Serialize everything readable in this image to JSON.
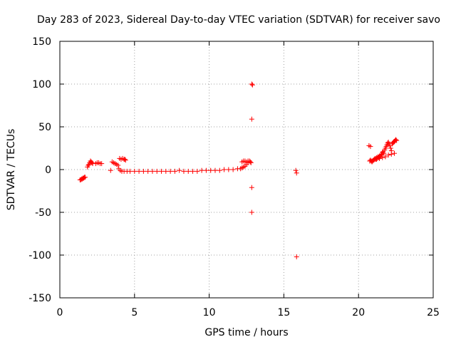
{
  "chart_data": {
    "type": "scatter",
    "title": "Day 283 of 2023, Sidereal Day-to-day VTEC variation (SDTVAR) for receiver savo",
    "xlabel": "GPS time / hours",
    "ylabel": "SDTVAR / TECUs",
    "xlim": [
      0,
      25
    ],
    "ylim": [
      -150,
      150
    ],
    "xticks": [
      0,
      5,
      10,
      15,
      20,
      25
    ],
    "yticks": [
      -150,
      -100,
      -50,
      0,
      50,
      100,
      150
    ],
    "grid": true,
    "marker": "+",
    "color": "#ff0000",
    "points": [
      [
        1.35,
        -12
      ],
      [
        1.4,
        -12
      ],
      [
        1.45,
        -11
      ],
      [
        1.5,
        -11
      ],
      [
        1.55,
        -10
      ],
      [
        1.6,
        -10
      ],
      [
        1.65,
        -9
      ],
      [
        1.7,
        -9
      ],
      [
        1.85,
        3
      ],
      [
        1.9,
        5
      ],
      [
        1.95,
        6
      ],
      [
        2.0,
        8
      ],
      [
        2.05,
        10
      ],
      [
        2.1,
        9
      ],
      [
        2.15,
        8
      ],
      [
        2.2,
        7
      ],
      [
        2.4,
        7
      ],
      [
        2.5,
        8
      ],
      [
        2.6,
        8
      ],
      [
        2.7,
        7
      ],
      [
        2.8,
        7
      ],
      [
        3.4,
        -1
      ],
      [
        3.5,
        9
      ],
      [
        3.6,
        8
      ],
      [
        3.7,
        7
      ],
      [
        3.8,
        6
      ],
      [
        3.9,
        5
      ],
      [
        4.0,
        13
      ],
      [
        4.1,
        12
      ],
      [
        4.2,
        13
      ],
      [
        4.3,
        12
      ],
      [
        4.35,
        12
      ],
      [
        4.4,
        11
      ],
      [
        3.95,
        1
      ],
      [
        4.05,
        -1
      ],
      [
        4.15,
        -2
      ],
      [
        4.3,
        -2
      ],
      [
        4.5,
        -2
      ],
      [
        4.7,
        -2
      ],
      [
        5.0,
        -2
      ],
      [
        5.3,
        -2
      ],
      [
        5.6,
        -2
      ],
      [
        5.9,
        -2
      ],
      [
        6.2,
        -2
      ],
      [
        6.5,
        -2
      ],
      [
        6.8,
        -2
      ],
      [
        7.1,
        -2
      ],
      [
        7.4,
        -2
      ],
      [
        7.7,
        -2
      ],
      [
        8.0,
        -1
      ],
      [
        8.3,
        -2
      ],
      [
        8.6,
        -2
      ],
      [
        8.9,
        -2
      ],
      [
        9.2,
        -2
      ],
      [
        9.5,
        -1
      ],
      [
        9.8,
        -1
      ],
      [
        10.1,
        -1
      ],
      [
        10.4,
        -1
      ],
      [
        10.7,
        -1
      ],
      [
        11.0,
        0
      ],
      [
        11.3,
        0
      ],
      [
        11.6,
        0
      ],
      [
        11.9,
        1
      ],
      [
        12.1,
        1
      ],
      [
        12.2,
        2
      ],
      [
        12.3,
        3
      ],
      [
        12.4,
        4
      ],
      [
        12.5,
        6
      ],
      [
        12.6,
        8
      ],
      [
        12.7,
        10
      ],
      [
        12.75,
        9
      ],
      [
        12.8,
        8
      ],
      [
        12.2,
        9
      ],
      [
        12.3,
        10
      ],
      [
        12.4,
        10
      ],
      [
        12.5,
        9
      ],
      [
        12.6,
        10
      ],
      [
        12.85,
        100
      ],
      [
        12.9,
        99
      ],
      [
        12.85,
        59
      ],
      [
        12.85,
        -21
      ],
      [
        12.85,
        -50
      ],
      [
        15.8,
        -1
      ],
      [
        15.85,
        -4
      ],
      [
        15.85,
        -102
      ],
      [
        20.7,
        28
      ],
      [
        20.8,
        27
      ],
      [
        20.75,
        10
      ],
      [
        20.8,
        11
      ],
      [
        20.85,
        10
      ],
      [
        20.9,
        9
      ],
      [
        20.95,
        10
      ],
      [
        21.0,
        11
      ],
      [
        21.05,
        12
      ],
      [
        21.1,
        13
      ],
      [
        21.15,
        12
      ],
      [
        21.2,
        14
      ],
      [
        21.25,
        13
      ],
      [
        21.3,
        15
      ],
      [
        21.35,
        14
      ],
      [
        21.4,
        16
      ],
      [
        21.45,
        15
      ],
      [
        21.5,
        17
      ],
      [
        21.55,
        18
      ],
      [
        21.6,
        20
      ],
      [
        21.65,
        21
      ],
      [
        21.7,
        19
      ],
      [
        21.75,
        23
      ],
      [
        21.8,
        25
      ],
      [
        21.85,
        27
      ],
      [
        21.9,
        29
      ],
      [
        21.95,
        31
      ],
      [
        22.0,
        32
      ],
      [
        22.05,
        30
      ],
      [
        22.1,
        28
      ],
      [
        22.15,
        25
      ],
      [
        22.2,
        22
      ],
      [
        22.25,
        30
      ],
      [
        22.3,
        31
      ],
      [
        22.35,
        32
      ],
      [
        22.4,
        33
      ],
      [
        22.45,
        34
      ],
      [
        22.5,
        35
      ],
      [
        22.55,
        34
      ],
      [
        21.2,
        12
      ],
      [
        21.4,
        13
      ],
      [
        21.6,
        14
      ],
      [
        21.8,
        15
      ],
      [
        22.0,
        17
      ],
      [
        22.2,
        18
      ],
      [
        22.4,
        19
      ]
    ]
  }
}
